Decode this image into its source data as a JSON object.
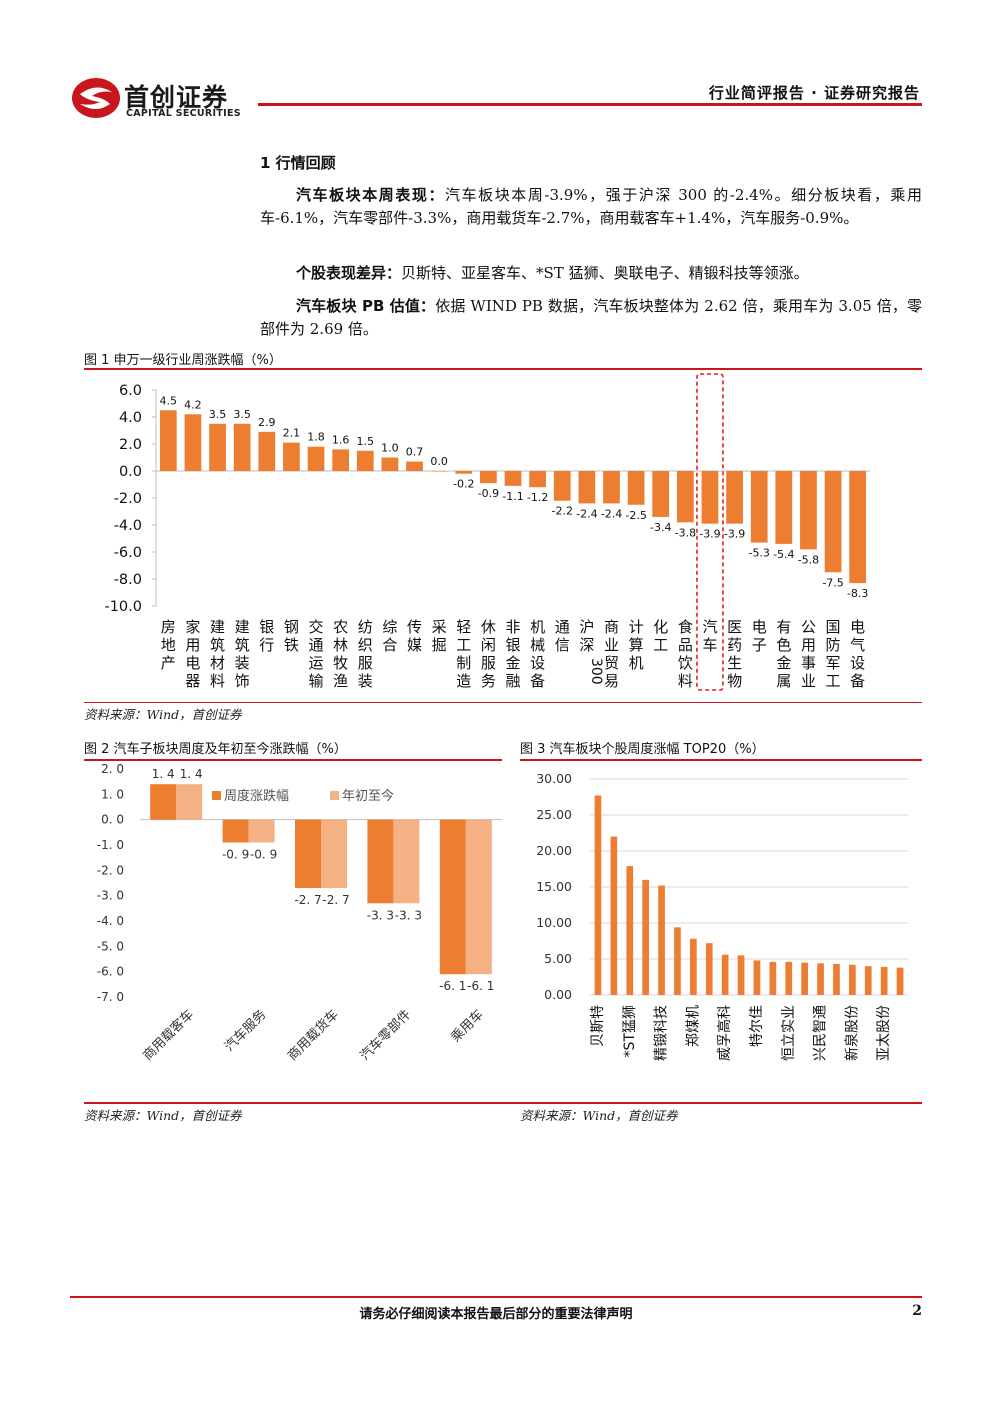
{
  "header": {
    "brand_cn": "首创证券",
    "brand_en": "CAPITAL SECURITIES",
    "report_type": "行业简评报告 · 证券研究报告"
  },
  "section": {
    "title": "1 行情回顾",
    "p1_label": "汽车板块本周表现：",
    "p1_text": "汽车板块本周-3.9%，强于沪深 300 的-2.4%。细分板块看，乘用车-6.1%，汽车零部件-3.3%，商用载货车-2.7%，商用载客车+1.4%，汽车服务-0.9%。",
    "p2_label": "个股表现差异：",
    "p2_text": "贝斯特、亚星客车、*ST 猛狮、奥联电子、精锻科技等领涨。",
    "p3_label": "汽车板块 PB 估值：",
    "p3_text": "依据 WIND PB 数据，汽车板块整体为 2.62 倍，乘用车为 3.05 倍，零部件为 2.69 倍。"
  },
  "figures": {
    "fig1_caption": "图 1 申万一级行业周涨跌幅（%）",
    "fig2_caption": "图 2 汽车子板块周度及年初至今涨跌幅（%）",
    "fig3_caption": "图 3 汽车板块个股周度涨幅 TOP20（%）",
    "source": "资料来源：Wind，首创证券"
  },
  "colors": {
    "accent": "#c8161d",
    "bar": "#ed7d31",
    "bar_light": "#f4b183"
  },
  "chart_data": [
    {
      "type": "bar",
      "categories": [
        "房地产",
        "家用电器",
        "建筑材料",
        "建筑装饰",
        "银行",
        "钢铁",
        "交通运输",
        "农林牧渔",
        "纺织服装",
        "综合",
        "传媒",
        "采掘",
        "轻工制造",
        "休闲服务",
        "非银金融",
        "机械设备",
        "通信",
        "沪深300",
        "商业贸易",
        "计算机",
        "化工",
        "食品饮料",
        "汽车",
        "医药生物",
        "电子",
        "有色金属",
        "公用事业",
        "国防军工",
        "电气设备"
      ],
      "values": [
        4.5,
        4.2,
        3.5,
        3.5,
        2.9,
        2.1,
        1.8,
        1.6,
        1.5,
        1.0,
        0.7,
        0.0,
        -0.2,
        -0.9,
        -1.1,
        -1.2,
        -2.2,
        -2.4,
        -2.4,
        -2.5,
        -3.4,
        -3.8,
        -3.9,
        -3.9,
        -5.3,
        -5.4,
        -5.8,
        -7.5,
        -8.3
      ],
      "yticks": [
        "6.0",
        "4.0",
        "2.0",
        "0.0",
        "-2.0",
        "-4.0",
        "-6.0",
        "-8.0",
        "-10.0"
      ],
      "ylim": [
        -10,
        6
      ],
      "highlight": "汽车"
    },
    {
      "type": "bar",
      "categories": [
        "商用载客车",
        "汽车服务",
        "商用载货车",
        "汽车零部件",
        "乘用车"
      ],
      "series": [
        {
          "name": "周度涨跌幅",
          "values": [
            1.4,
            -0.9,
            -2.7,
            -3.3,
            -6.1
          ],
          "labels": [
            "1. 4",
            "-0. 9",
            "-2. 7",
            "-3. 3",
            "-6. 1"
          ]
        },
        {
          "name": "年初至今",
          "values": [
            1.4,
            -0.9,
            -2.7,
            -3.3,
            -6.1
          ],
          "labels": [
            "1. 4",
            "-0. 9",
            "-2. 7",
            "-3. 3",
            "-6. 1"
          ]
        }
      ],
      "yticks": [
        "2. 0",
        "1. 0",
        "0. 0",
        "-1. 0",
        "-2. 0",
        "-3. 0",
        "-4. 0",
        "-5. 0",
        "-6. 0",
        "-7. 0"
      ],
      "ylim": [
        -7,
        2
      ],
      "legend": "top-right"
    },
    {
      "type": "bar",
      "values": [
        27.7,
        22.0,
        17.9,
        16.0,
        15.2,
        9.4,
        7.8,
        7.2,
        5.6,
        5.5,
        4.8,
        4.6,
        4.6,
        4.5,
        4.4,
        4.3,
        4.2,
        4.0,
        3.9,
        3.8
      ],
      "category_labels": [
        "贝斯特",
        "*ST猛狮",
        "精锻科技",
        "郑煤机",
        "威孚高科",
        "特尔佳",
        "恒立实业",
        "兴民智通",
        "新泉股份",
        "亚太股份"
      ],
      "yticks": [
        "30.00",
        "25.00",
        "20.00",
        "15.00",
        "10.00",
        "5.00",
        "0.00"
      ],
      "ylim": [
        0,
        30
      ]
    }
  ],
  "footer": {
    "notice": "请务必仔细阅读本报告最后部分的重要法律声明",
    "page": "2"
  }
}
